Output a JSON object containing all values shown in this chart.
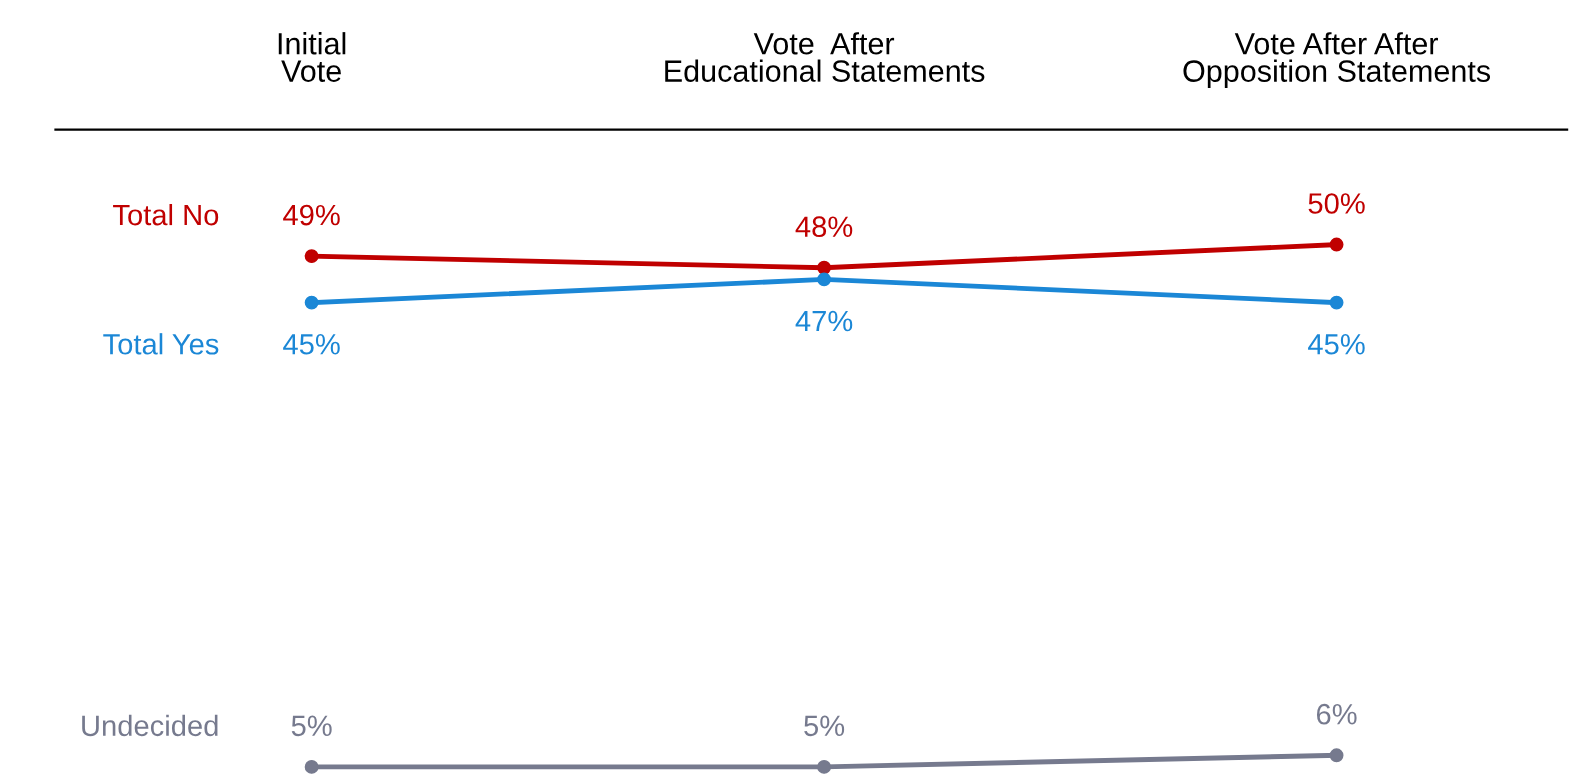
{
  "chart_data": {
    "type": "line",
    "categories": [
      "Initial\nVote",
      "Vote  After\nEducational Statements",
      "Vote After After\nOpposition Statements"
    ],
    "series": [
      {
        "name": "Total No",
        "color": "#c00000",
        "values": [
          49,
          48,
          50
        ],
        "value_labels": [
          "49%",
          "48%",
          "50%"
        ]
      },
      {
        "name": "Total Yes",
        "color": "#1b87d6",
        "values": [
          45,
          47,
          45
        ],
        "value_labels": [
          "45%",
          "47%",
          "45%"
        ]
      },
      {
        "name": "Undecided",
        "color": "#767a8e",
        "values": [
          5,
          5,
          6
        ],
        "value_labels": [
          "5%",
          "5%",
          "6%"
        ]
      }
    ],
    "marker": "circle",
    "line_style": "solid",
    "grid": false,
    "legend": false,
    "tick_labels": "x"
  }
}
